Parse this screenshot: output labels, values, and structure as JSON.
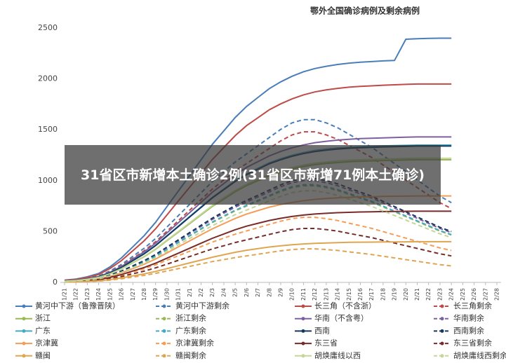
{
  "chart_data": {
    "type": "line",
    "title": "鄂外全国确诊病例及剩余病例",
    "overlay_text": "31省区市新增本土确诊2例(31省区市新增71例本土确诊)",
    "categories": [
      "1/21",
      "1/22",
      "1/23",
      "1/24",
      "1/25",
      "1/26",
      "1/27",
      "1/28",
      "1/29",
      "1/30",
      "1/31",
      "2/1",
      "2/2",
      "2/3",
      "2/4",
      "2/5",
      "2/6",
      "2/7",
      "2/8",
      "2/9",
      "2/10",
      "2/11",
      "2/12",
      "2/13",
      "2/14",
      "2/15",
      "2/16",
      "2/17",
      "2/18",
      "2/19",
      "2/20",
      "2/21",
      "2/22",
      "2/23",
      "2/24",
      "2/25",
      "2/26",
      "2/27",
      "2/28"
    ],
    "ylim": [
      0,
      2500
    ],
    "yticks": [
      0,
      500,
      1000,
      1500,
      2000,
      2500
    ],
    "grid": false,
    "series": [
      {
        "name": "黄河中下游（鲁豫晋陕）",
        "color": "#4a7ebb",
        "line_style": "solid",
        "values": [
          22,
          33,
          55,
          88,
          153,
          241,
          350,
          460,
          591,
          745,
          898,
          1051,
          1205,
          1358,
          1489,
          1621,
          1730,
          1818,
          1905,
          1971,
          2026,
          2070,
          2102,
          2124,
          2142,
          2155,
          2164,
          2170,
          2177,
          2181,
          2390,
          2395,
          2398,
          2400,
          2400,
          null,
          null,
          null,
          null
        ]
      },
      {
        "name": "黄河中下游剩余",
        "color": "#4a7ebb",
        "line_style": "dashed",
        "values": [
          16,
          24,
          40,
          64,
          112,
          176,
          256,
          336,
          432,
          544,
          656,
          768,
          880,
          992,
          1088,
          1184,
          1264,
          1344,
          1424,
          1504,
          1568,
          1600,
          1600,
          1568,
          1520,
          1456,
          1392,
          1328,
          1248,
          1168,
          1088,
          1008,
          928,
          848,
          784,
          null,
          null,
          null,
          null
        ]
      },
      {
        "name": "长三角（不含浙）",
        "color": "#be4b48",
        "line_style": "solid",
        "values": [
          20,
          29,
          49,
          78,
          137,
          215,
          312,
          410,
          527,
          663,
          800,
          936,
          1073,
          1209,
          1326,
          1443,
          1541,
          1619,
          1697,
          1755,
          1804,
          1843,
          1872,
          1892,
          1907,
          1919,
          1927,
          1932,
          1938,
          1942,
          1946,
          1950,
          1950,
          1950,
          1950,
          null,
          null,
          null,
          null
        ]
      },
      {
        "name": "长三角剩余",
        "color": "#be4b48",
        "line_style": "dashed",
        "values": [
          15,
          22,
          37,
          59,
          104,
          163,
          237,
          311,
          400,
          503,
          607,
          710,
          814,
          918,
          1006,
          1095,
          1169,
          1243,
          1317,
          1391,
          1450,
          1480,
          1480,
          1450,
          1406,
          1347,
          1288,
          1228,
          1154,
          1080,
          1006,
          932,
          858,
          784,
          725,
          null,
          null,
          null,
          null
        ]
      },
      {
        "name": "浙江",
        "color": "#98b954",
        "line_style": "solid",
        "values": [
          12,
          18,
          30,
          48,
          84,
          133,
          193,
          253,
          325,
          410,
          494,
          578,
          663,
          747,
          819,
          892,
          952,
          1000,
          1048,
          1085,
          1115,
          1139,
          1157,
          1169,
          1178,
          1186,
          1191,
          1194,
          1198,
          1200,
          1203,
          1205,
          1205,
          1205,
          1205,
          null,
          null,
          null,
          null
        ]
      },
      {
        "name": "浙江剩余",
        "color": "#98b954",
        "line_style": "dashed",
        "values": [
          10,
          14,
          24,
          38,
          67,
          105,
          152,
          200,
          257,
          323,
          390,
          456,
          523,
          589,
          646,
          703,
          751,
          798,
          846,
          893,
          931,
          950,
          950,
          931,
          903,
          865,
          827,
          789,
          741,
          694,
          646,
          599,
          551,
          504,
          466,
          null,
          null,
          null,
          null
        ]
      },
      {
        "name": "华南（不含粤）",
        "color": "#7d60a0",
        "line_style": "solid",
        "values": [
          14,
          21,
          36,
          57,
          100,
          157,
          229,
          300,
          386,
          486,
          586,
          686,
          787,
          887,
          972,
          1058,
          1130,
          1187,
          1244,
          1287,
          1323,
          1351,
          1373,
          1387,
          1399,
          1407,
          1413,
          1417,
          1421,
          1424,
          1427,
          1430,
          1430,
          1430,
          1430,
          null,
          null,
          null,
          null
        ]
      },
      {
        "name": "华南剩余",
        "color": "#7d60a0",
        "line_style": "dashed",
        "values": [
          10,
          15,
          25,
          40,
          70,
          110,
          160,
          210,
          270,
          340,
          410,
          480,
          550,
          620,
          680,
          740,
          790,
          840,
          890,
          940,
          980,
          1000,
          1000,
          980,
          950,
          910,
          870,
          830,
          780,
          730,
          680,
          630,
          580,
          530,
          490,
          null,
          null,
          null,
          null
        ]
      },
      {
        "name": "广东",
        "color": "#46aac5",
        "line_style": "solid",
        "values": [
          14,
          20,
          34,
          54,
          95,
          149,
          216,
          284,
          365,
          459,
          554,
          648,
          743,
          837,
          918,
          999,
          1067,
          1121,
          1175,
          1215,
          1249,
          1276,
          1296,
          1310,
          1320,
          1328,
          1334,
          1338,
          1342,
          1345,
          1347,
          1350,
          1350,
          1350,
          1350,
          null,
          null,
          null,
          null
        ]
      },
      {
        "name": "广东剩余",
        "color": "#46aac5",
        "line_style": "dashed",
        "values": [
          10,
          14,
          24,
          38,
          67,
          106,
          154,
          202,
          259,
          326,
          394,
          461,
          528,
          595,
          653,
          710,
          758,
          806,
          854,
          902,
          941,
          960,
          960,
          941,
          912,
          874,
          835,
          797,
          749,
          701,
          653,
          605,
          557,
          509,
          470,
          null,
          null,
          null,
          null
        ]
      },
      {
        "name": "西南",
        "color": "#17375e",
        "line_style": "solid",
        "values": [
          13,
          20,
          34,
          54,
          94,
          147,
          214,
          281,
          362,
          456,
          549,
          643,
          737,
          831,
          911,
          992,
          1059,
          1112,
          1166,
          1206,
          1240,
          1266,
          1286,
          1300,
          1311,
          1319,
          1324,
          1328,
          1332,
          1335,
          1337,
          1340,
          1340,
          1340,
          1340,
          null,
          null,
          null,
          null
        ]
      },
      {
        "name": "西南剩余",
        "color": "#17375e",
        "line_style": "dashed",
        "values": [
          10,
          15,
          26,
          41,
          71,
          112,
          163,
          214,
          275,
          347,
          418,
          490,
          561,
          632,
          694,
          755,
          806,
          857,
          908,
          959,
          1000,
          1020,
          1020,
          1000,
          969,
          928,
          887,
          847,
          796,
          745,
          694,
          643,
          592,
          541,
          500,
          null,
          null,
          null,
          null
        ]
      },
      {
        "name": "京津冀",
        "color": "#f59d56",
        "line_style": "solid",
        "values": [
          9,
          13,
          21,
          34,
          60,
          94,
          136,
          179,
          230,
          289,
          349,
          408,
          468,
          527,
          578,
          629,
          672,
          706,
          740,
          765,
          786,
          803,
          816,
          825,
          831,
          836,
          840,
          842,
          845,
          847,
          848,
          850,
          850,
          850,
          850,
          null,
          null,
          null,
          null
        ]
      },
      {
        "name": "京津冀剩余",
        "color": "#f59d56",
        "line_style": "dashed",
        "values": [
          6,
          10,
          16,
          26,
          45,
          70,
          102,
          134,
          173,
          218,
          262,
          307,
          352,
          397,
          435,
          474,
          506,
          538,
          570,
          602,
          627,
          640,
          640,
          627,
          608,
          582,
          557,
          531,
          499,
          467,
          435,
          403,
          371,
          339,
          314,
          null,
          null,
          null,
          null
        ]
      },
      {
        "name": "东三省",
        "color": "#772c2a",
        "line_style": "solid",
        "values": [
          7,
          11,
          18,
          28,
          49,
          77,
          112,
          147,
          189,
          238,
          287,
          336,
          385,
          434,
          476,
          518,
          553,
          581,
          609,
          630,
          648,
          662,
          672,
          679,
          685,
          689,
          692,
          694,
          696,
          697,
          699,
          700,
          700,
          700,
          700,
          null,
          null,
          null,
          null
        ]
      },
      {
        "name": "东三省剩余",
        "color": "#772c2a",
        "line_style": "dashed",
        "values": [
          5,
          8,
          13,
          21,
          37,
          58,
          85,
          111,
          143,
          180,
          217,
          254,
          292,
          329,
          360,
          392,
          419,
          445,
          472,
          498,
          519,
          530,
          530,
          519,
          504,
          482,
          461,
          440,
          413,
          387,
          360,
          334,
          307,
          281,
          260,
          null,
          null,
          null,
          null
        ]
      },
      {
        "name": "赣闽",
        "color": "#e0a550",
        "line_style": "solid",
        "values": [
          4,
          6,
          10,
          16,
          28,
          44,
          64,
          84,
          108,
          136,
          164,
          192,
          220,
          248,
          272,
          296,
          316,
          332,
          348,
          360,
          370,
          378,
          384,
          388,
          391,
          394,
          395,
          396,
          398,
          398,
          399,
          400,
          400,
          400,
          400,
          null,
          null,
          null,
          null
        ]
      },
      {
        "name": "赣闽剩余",
        "color": "#e0a550",
        "line_style": "dashed",
        "values": [
          3,
          5,
          8,
          13,
          23,
          36,
          53,
          69,
          89,
          112,
          135,
          158,
          182,
          205,
          224,
          244,
          261,
          277,
          294,
          310,
          323,
          330,
          330,
          323,
          314,
          300,
          287,
          274,
          257,
          241,
          224,
          208,
          191,
          175,
          162,
          null,
          null,
          null,
          null
        ]
      },
      {
        "name": "胡焕庸线以西",
        "color": "#c4d79b",
        "line_style": "solid",
        "values": [
          12,
          18,
          31,
          49,
          85,
          134,
          195,
          256,
          329,
          415,
          500,
          586,
          671,
          756,
          830,
          903,
          964,
          1013,
          1061,
          1098,
          1129,
          1153,
          1171,
          1183,
          1193,
          1200,
          1205,
          1209,
          1213,
          1215,
          1218,
          1220,
          1220,
          1220,
          1220,
          null,
          null,
          null,
          null
        ]
      },
      {
        "name": "胡焕庸线西剩余",
        "color": "#c4d79b",
        "line_style": "dashed",
        "values": [
          9,
          14,
          23,
          36,
          63,
          99,
          144,
          189,
          243,
          306,
          369,
          432,
          495,
          558,
          612,
          666,
          711,
          756,
          801,
          846,
          882,
          900,
          900,
          882,
          855,
          819,
          783,
          747,
          702,
          657,
          612,
          567,
          522,
          477,
          441,
          null,
          null,
          null,
          null
        ]
      }
    ]
  }
}
